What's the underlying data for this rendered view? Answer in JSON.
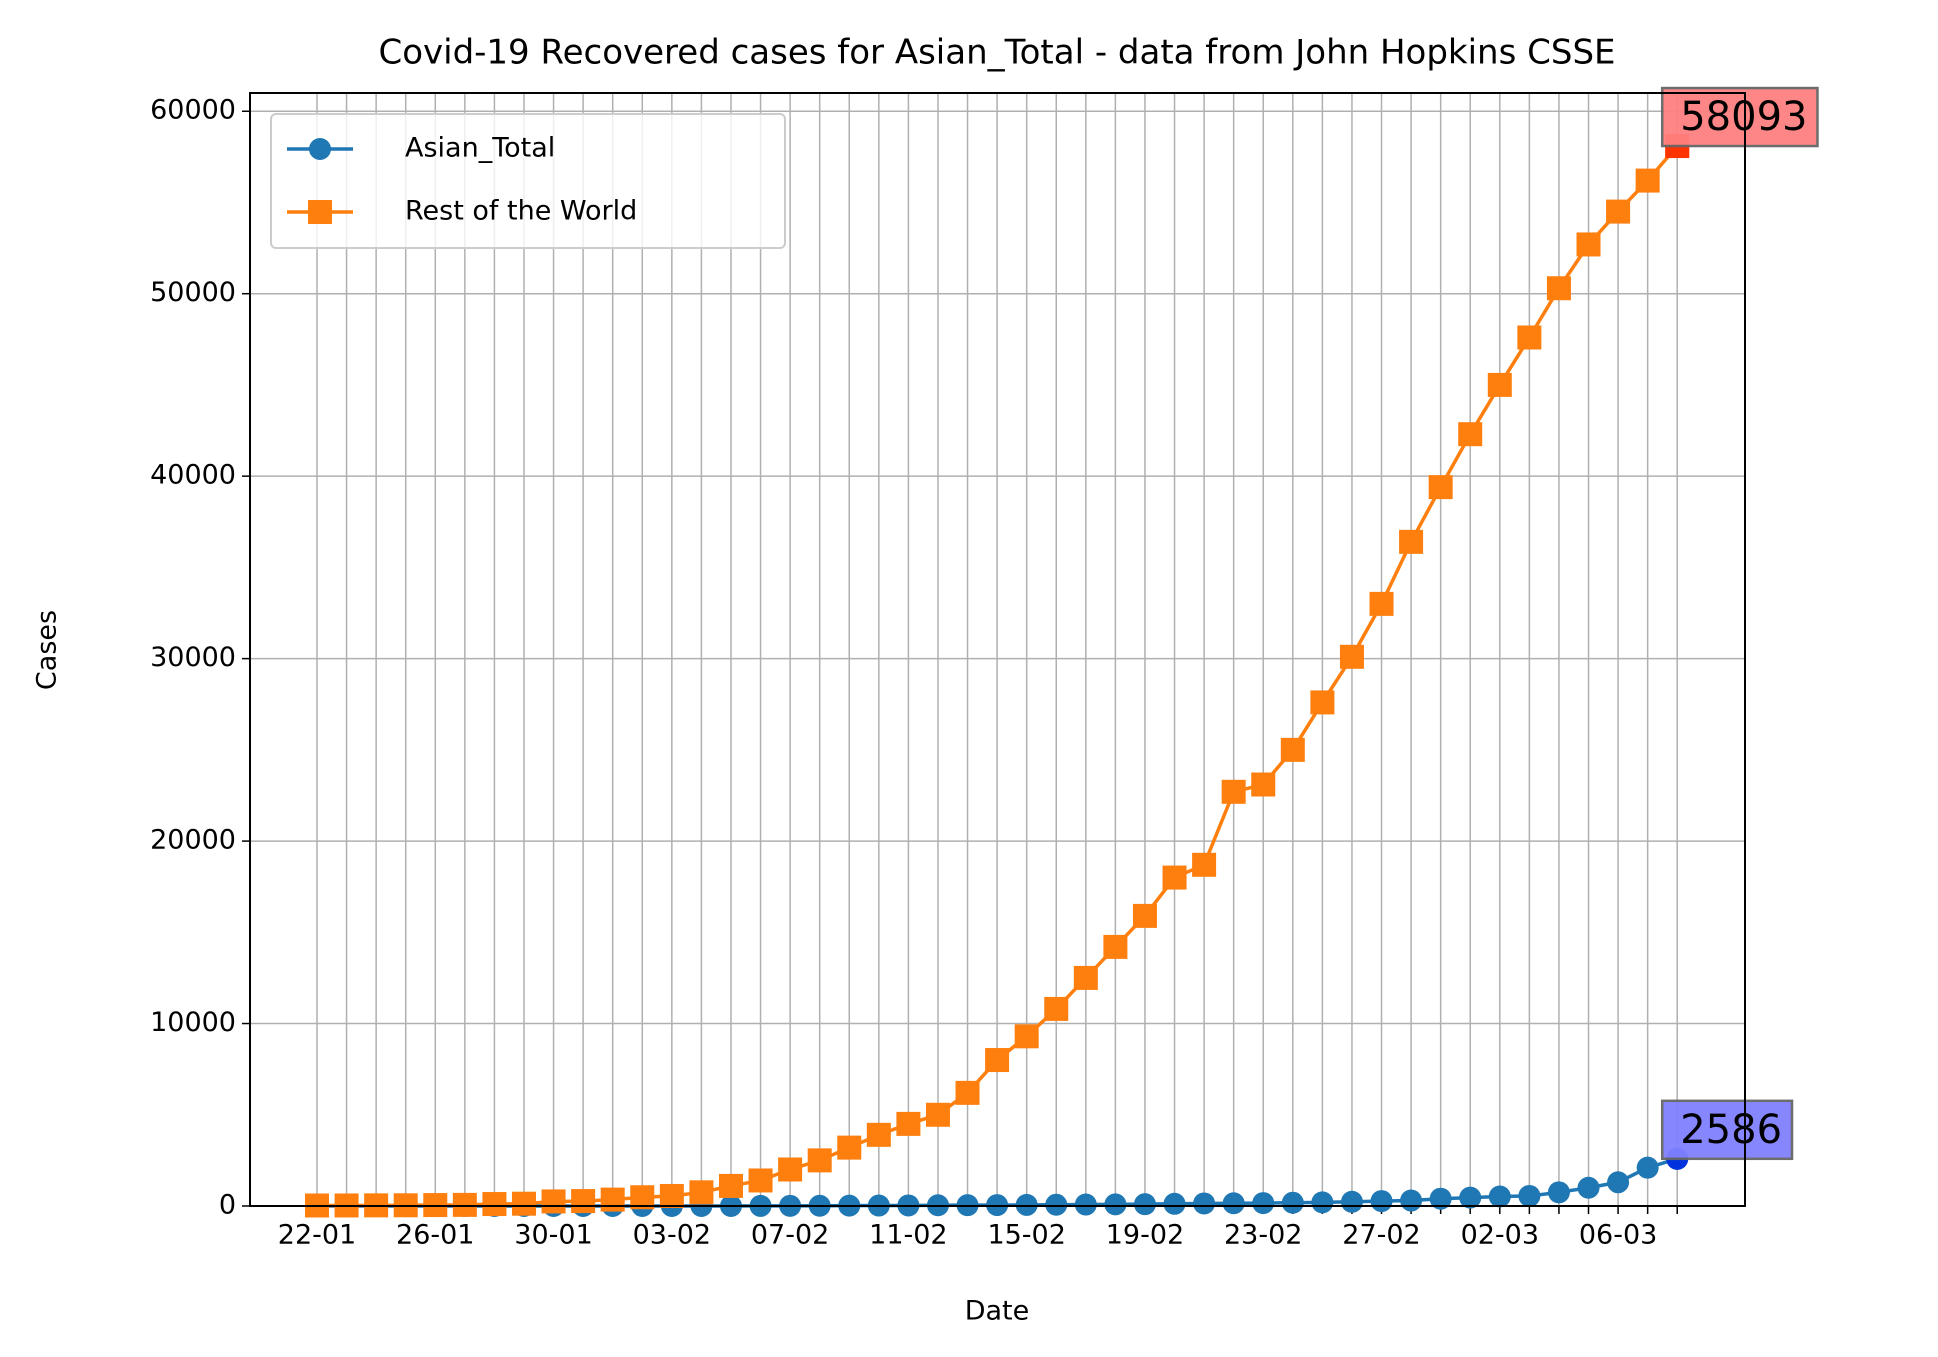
{
  "chart_data": {
    "type": "line",
    "title": "Covid-19 Recovered cases for Asian_Total - data from John Hopkins CSSE",
    "xlabel": "Date",
    "ylabel": "Cases",
    "categories": [
      "22-01",
      null,
      null,
      null,
      "26-01",
      null,
      null,
      null,
      "30-01",
      null,
      null,
      null,
      "03-02",
      null,
      null,
      null,
      "07-02",
      null,
      null,
      null,
      "11-02",
      null,
      null,
      null,
      "15-02",
      null,
      null,
      null,
      "19-02",
      null,
      null,
      null,
      "23-02",
      null,
      null,
      null,
      "27-02",
      null,
      null,
      null,
      "02-03",
      null,
      null,
      null,
      "06-03",
      null,
      null
    ],
    "series": [
      {
        "name": "Asian_Total",
        "color": "#1f77b4",
        "marker": "circle",
        "values": [
          0,
          0,
          0,
          0,
          0,
          0,
          0,
          0,
          0,
          0,
          0,
          0,
          0,
          0,
          0,
          5,
          10,
          15,
          20,
          25,
          30,
          40,
          45,
          50,
          60,
          70,
          80,
          90,
          100,
          120,
          140,
          150,
          160,
          180,
          200,
          230,
          270,
          300,
          400,
          460,
          520,
          550,
          750,
          1000,
          1300,
          2100,
          2586
        ]
      },
      {
        "name": "Rest of the World",
        "color": "#ff7f0e",
        "marker": "square",
        "values": [
          28,
          30,
          36,
          39,
          52,
          61,
          107,
          126,
          250,
          270,
          350,
          480,
          550,
          750,
          1100,
          1400,
          2000,
          2500,
          3200,
          3900,
          4500,
          5000,
          6200,
          8000,
          9300,
          10800,
          12500,
          14200,
          15900,
          18000,
          18700,
          22700,
          23100,
          25000,
          27600,
          30100,
          33000,
          36400,
          39400,
          42300,
          45000,
          47600,
          50300,
          52700,
          54500,
          56200,
          58093
        ]
      }
    ],
    "annotations": [
      {
        "series": 1,
        "text": "58093",
        "box_color": "#ff8080",
        "point_color": "#ff3300"
      },
      {
        "series": 0,
        "text": "2586",
        "box_color": "#8080ff",
        "point_color": "#0033dd"
      }
    ],
    "ylim": [
      0,
      61000
    ],
    "yticks": [
      0,
      10000,
      20000,
      30000,
      40000,
      50000,
      60000
    ],
    "grid": true,
    "legend": "upper left"
  }
}
